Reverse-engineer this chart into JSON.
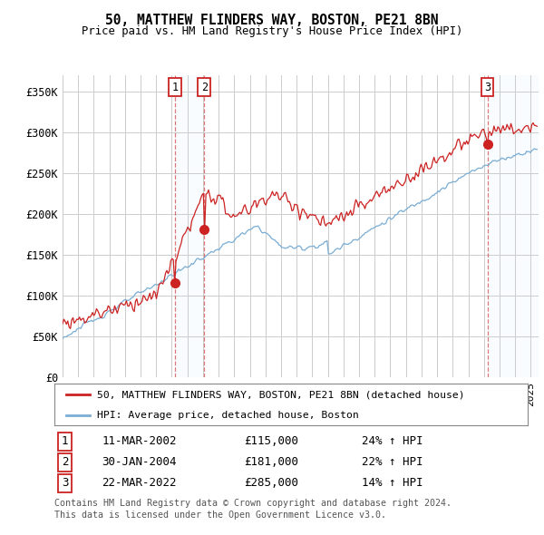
{
  "title": "50, MATTHEW FLINDERS WAY, BOSTON, PE21 8BN",
  "subtitle": "Price paid vs. HM Land Registry's House Price Index (HPI)",
  "ylabel_ticks": [
    "£0",
    "£50K",
    "£100K",
    "£150K",
    "£200K",
    "£250K",
    "£300K",
    "£350K"
  ],
  "ytick_values": [
    0,
    50000,
    100000,
    150000,
    200000,
    250000,
    300000,
    350000
  ],
  "ylim": [
    0,
    370000
  ],
  "xlim_start": 1995.0,
  "xlim_end": 2025.5,
  "sale_dates": [
    2002.19,
    2004.08,
    2022.22
  ],
  "sale_prices": [
    115000,
    181000,
    285000
  ],
  "sale_labels": [
    "1",
    "2",
    "3"
  ],
  "sale_pct": [
    "24% ↑ HPI",
    "22% ↑ HPI",
    "14% ↑ HPI"
  ],
  "sale_date_strs": [
    "11-MAR-2002",
    "30-JAN-2004",
    "22-MAR-2022"
  ],
  "sale_price_strs": [
    "£115,000",
    "£181,000",
    "£285,000"
  ],
  "hpi_color": "#7aadd4",
  "price_color": "#cc2222",
  "legend_line1": "50, MATTHEW FLINDERS WAY, BOSTON, PE21 8BN (detached house)",
  "legend_line2": "HPI: Average price, detached house, Boston",
  "footer1": "Contains HM Land Registry data © Crown copyright and database right 2024.",
  "footer2": "This data is licensed under the Open Government Licence v3.0.",
  "background_color": "#ffffff",
  "plot_bg_color": "#ffffff",
  "grid_color": "#cccccc",
  "shade_color": "#ddeeff"
}
